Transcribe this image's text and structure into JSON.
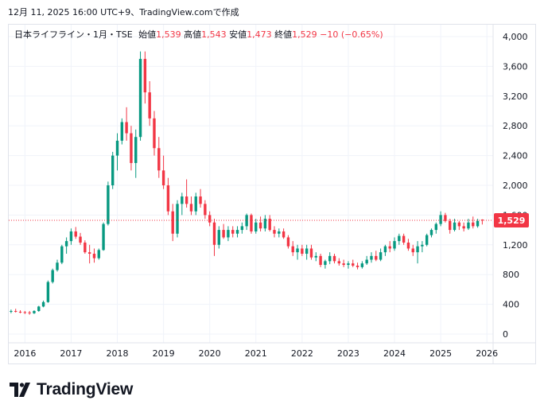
{
  "header": {
    "timestamp_line": "12月 11, 2025 16:00 UTC+9、TradingView.comで作成"
  },
  "legend": {
    "symbol": "日本ライフライン・1月・TSE",
    "open_label": "始値",
    "open": "1,539",
    "high_label": "高値",
    "high": "1,543",
    "low_label": "安値",
    "low": "1,473",
    "close_label": "終値",
    "close": "1,529",
    "change": "−10 (−0.65%)"
  },
  "price_badge": "1,529",
  "brand": {
    "name": "TradingView"
  },
  "colors": {
    "up": "#089981",
    "down": "#f23645",
    "grid": "#f0f3fa",
    "axis_text": "#131722"
  },
  "chart_data": {
    "type": "candlestick",
    "interval": "monthly",
    "last_price": 1529,
    "ylim": [
      0,
      4000
    ],
    "yticks": [
      "0",
      "400",
      "800",
      "1,200",
      "1,600",
      "2,000",
      "2,400",
      "2,800",
      "3,200",
      "3,600",
      "4,000"
    ],
    "ytick_values": [
      0,
      400,
      800,
      1200,
      1600,
      2000,
      2400,
      2800,
      3200,
      3600,
      4000
    ],
    "xticks": [
      "2016",
      "2017",
      "2018",
      "2019",
      "2020",
      "2021",
      "2022",
      "2023",
      "2024",
      "2025",
      "2026"
    ],
    "candles": [
      [
        2015.7,
        300,
        330,
        280,
        310
      ],
      [
        2015.8,
        310,
        340,
        290,
        300
      ],
      [
        2015.9,
        300,
        320,
        280,
        295
      ],
      [
        2016.0,
        295,
        310,
        270,
        290
      ],
      [
        2016.1,
        290,
        310,
        260,
        280
      ],
      [
        2016.2,
        280,
        320,
        270,
        310
      ],
      [
        2016.3,
        310,
        380,
        300,
        370
      ],
      [
        2016.4,
        370,
        450,
        360,
        430
      ],
      [
        2016.5,
        430,
        720,
        420,
        700
      ],
      [
        2016.6,
        700,
        880,
        680,
        860
      ],
      [
        2016.7,
        860,
        1000,
        840,
        960
      ],
      [
        2016.8,
        960,
        1200,
        940,
        1180
      ],
      [
        2016.9,
        1180,
        1300,
        1080,
        1250
      ],
      [
        2017.0,
        1250,
        1420,
        1200,
        1380
      ],
      [
        2017.1,
        1380,
        1440,
        1280,
        1310
      ],
      [
        2017.2,
        1310,
        1360,
        1200,
        1230
      ],
      [
        2017.3,
        1230,
        1260,
        1080,
        1100
      ],
      [
        2017.4,
        1100,
        1200,
        950,
        1080
      ],
      [
        2017.5,
        1080,
        1150,
        960,
        1020
      ],
      [
        2017.6,
        1020,
        1150,
        1000,
        1130
      ],
      [
        2017.7,
        1130,
        1500,
        1120,
        1480
      ],
      [
        2017.8,
        1480,
        2050,
        1460,
        2000
      ],
      [
        2017.9,
        2000,
        2450,
        1950,
        2400
      ],
      [
        2018.0,
        2400,
        2700,
        2200,
        2600
      ],
      [
        2018.1,
        2600,
        2900,
        2550,
        2850
      ],
      [
        2018.2,
        2850,
        3050,
        2600,
        2700
      ],
      [
        2018.3,
        2700,
        2800,
        2200,
        2300
      ],
      [
        2018.4,
        2300,
        2750,
        2100,
        2650
      ],
      [
        2018.5,
        2650,
        3800,
        2600,
        3700
      ],
      [
        2018.6,
        3700,
        3800,
        3100,
        3250
      ],
      [
        2018.7,
        3250,
        3400,
        2800,
        2900
      ],
      [
        2018.8,
        2900,
        3000,
        2400,
        2500
      ],
      [
        2018.9,
        2500,
        2650,
        2100,
        2200
      ],
      [
        2019.0,
        2200,
        2400,
        1950,
        2000
      ],
      [
        2019.1,
        2000,
        2100,
        1600,
        1650
      ],
      [
        2019.2,
        1650,
        1750,
        1250,
        1350
      ],
      [
        2019.3,
        1350,
        1800,
        1300,
        1750
      ],
      [
        2019.4,
        1750,
        1900,
        1600,
        1850
      ],
      [
        2019.5,
        1850,
        2080,
        1700,
        1750
      ],
      [
        2019.6,
        1750,
        1850,
        1600,
        1650
      ],
      [
        2019.7,
        1650,
        1900,
        1600,
        1850
      ],
      [
        2019.8,
        1850,
        1950,
        1700,
        1750
      ],
      [
        2019.9,
        1750,
        1800,
        1550,
        1600
      ],
      [
        2020.0,
        1600,
        1650,
        1450,
        1500
      ],
      [
        2020.1,
        1500,
        1550,
        1050,
        1200
      ],
      [
        2020.2,
        1200,
        1450,
        1150,
        1400
      ],
      [
        2020.3,
        1400,
        1480,
        1280,
        1300
      ],
      [
        2020.4,
        1300,
        1450,
        1250,
        1400
      ],
      [
        2020.5,
        1400,
        1450,
        1300,
        1350
      ],
      [
        2020.6,
        1350,
        1450,
        1300,
        1400
      ],
      [
        2020.7,
        1400,
        1500,
        1350,
        1450
      ],
      [
        2020.8,
        1450,
        1620,
        1400,
        1600
      ],
      [
        2020.9,
        1600,
        1620,
        1350,
        1380
      ],
      [
        2021.0,
        1380,
        1550,
        1350,
        1500
      ],
      [
        2021.1,
        1500,
        1580,
        1380,
        1420
      ],
      [
        2021.2,
        1420,
        1600,
        1380,
        1550
      ],
      [
        2021.3,
        1550,
        1600,
        1380,
        1400
      ],
      [
        2021.4,
        1400,
        1450,
        1300,
        1350
      ],
      [
        2021.5,
        1350,
        1420,
        1300,
        1380
      ],
      [
        2021.6,
        1380,
        1420,
        1280,
        1300
      ],
      [
        2021.7,
        1300,
        1330,
        1150,
        1180
      ],
      [
        2021.8,
        1180,
        1250,
        1050,
        1100
      ],
      [
        2021.9,
        1100,
        1200,
        1000,
        1150
      ],
      [
        2022.0,
        1150,
        1200,
        1050,
        1080
      ],
      [
        2022.1,
        1080,
        1200,
        1000,
        1150
      ],
      [
        2022.2,
        1150,
        1200,
        1000,
        1030
      ],
      [
        2022.3,
        1030,
        1100,
        980,
        1050
      ],
      [
        2022.4,
        1050,
        1080,
        900,
        930
      ],
      [
        2022.5,
        930,
        1000,
        880,
        980
      ],
      [
        2022.6,
        980,
        1100,
        940,
        1050
      ],
      [
        2022.7,
        1050,
        1080,
        950,
        980
      ],
      [
        2022.8,
        980,
        1020,
        920,
        950
      ],
      [
        2022.9,
        950,
        1000,
        900,
        930
      ],
      [
        2023.0,
        930,
        980,
        880,
        950
      ],
      [
        2023.1,
        950,
        1000,
        900,
        920
      ],
      [
        2023.2,
        920,
        960,
        870,
        900
      ],
      [
        2023.3,
        900,
        980,
        880,
        950
      ],
      [
        2023.4,
        950,
        1050,
        930,
        1000
      ],
      [
        2023.5,
        1000,
        1100,
        960,
        1050
      ],
      [
        2023.6,
        1050,
        1120,
        980,
        1000
      ],
      [
        2023.7,
        1000,
        1150,
        980,
        1100
      ],
      [
        2023.8,
        1100,
        1200,
        1050,
        1180
      ],
      [
        2023.9,
        1180,
        1250,
        1100,
        1150
      ],
      [
        2024.0,
        1150,
        1300,
        1120,
        1250
      ],
      [
        2024.1,
        1250,
        1350,
        1200,
        1320
      ],
      [
        2024.2,
        1320,
        1350,
        1200,
        1230
      ],
      [
        2024.3,
        1230,
        1280,
        1120,
        1150
      ],
      [
        2024.4,
        1150,
        1200,
        1050,
        1100
      ],
      [
        2024.5,
        1100,
        1250,
        950,
        1180
      ],
      [
        2024.6,
        1180,
        1250,
        1100,
        1200
      ],
      [
        2024.7,
        1200,
        1350,
        1180,
        1330
      ],
      [
        2024.8,
        1330,
        1420,
        1300,
        1400
      ],
      [
        2024.9,
        1400,
        1500,
        1350,
        1480
      ],
      [
        2025.0,
        1480,
        1650,
        1450,
        1600
      ],
      [
        2025.1,
        1600,
        1630,
        1500,
        1520
      ],
      [
        2025.2,
        1520,
        1550,
        1350,
        1400
      ],
      [
        2025.3,
        1400,
        1550,
        1380,
        1500
      ],
      [
        2025.4,
        1500,
        1520,
        1400,
        1450
      ],
      [
        2025.5,
        1450,
        1500,
        1380,
        1420
      ],
      [
        2025.6,
        1420,
        1550,
        1400,
        1500
      ],
      [
        2025.7,
        1500,
        1580,
        1420,
        1450
      ],
      [
        2025.8,
        1450,
        1550,
        1430,
        1520
      ],
      [
        2025.9,
        1539,
        1543,
        1473,
        1529
      ]
    ]
  }
}
